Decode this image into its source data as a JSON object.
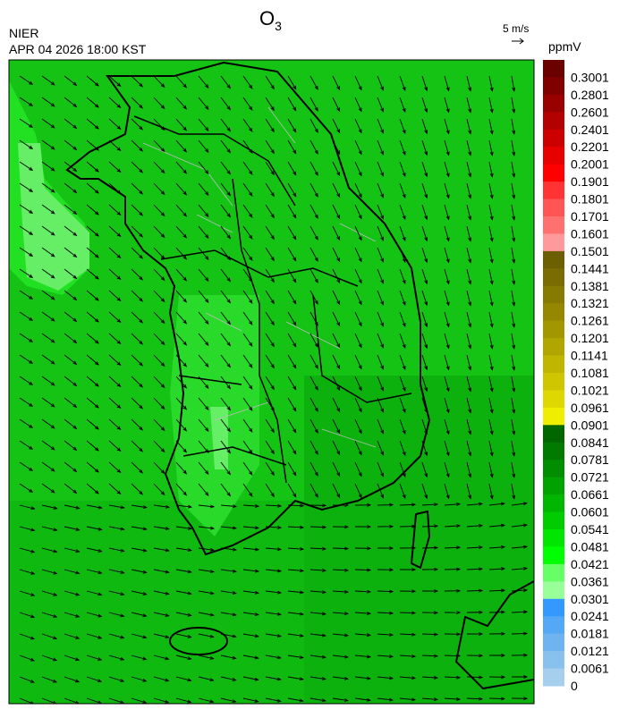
{
  "header": {
    "title_main": "O",
    "title_sub": "3",
    "source": "NIER",
    "datetime": "APR 04 2026 18:00 KST",
    "wind_scale": "5 m/s"
  },
  "legend": {
    "unit": "ppmV",
    "items": [
      {
        "label": "0.3001",
        "color": "#6a0000"
      },
      {
        "label": "0.2801",
        "color": "#800000"
      },
      {
        "label": "0.2601",
        "color": "#990000"
      },
      {
        "label": "0.2401",
        "color": "#b30000"
      },
      {
        "label": "0.2201",
        "color": "#cc0000"
      },
      {
        "label": "0.2001",
        "color": "#e60000"
      },
      {
        "label": "0.1901",
        "color": "#ff0000"
      },
      {
        "label": "0.1801",
        "color": "#ff3333"
      },
      {
        "label": "0.1701",
        "color": "#ff5555"
      },
      {
        "label": "0.1601",
        "color": "#ff7070"
      },
      {
        "label": "0.1501",
        "color": "#ff9a9a"
      },
      {
        "label": "0.1441",
        "color": "#6b5f00"
      },
      {
        "label": "0.1381",
        "color": "#7a6c00"
      },
      {
        "label": "0.1321",
        "color": "#877a00"
      },
      {
        "label": "0.1261",
        "color": "#958800"
      },
      {
        "label": "0.1201",
        "color": "#a39700"
      },
      {
        "label": "0.1141",
        "color": "#b1a600"
      },
      {
        "label": "0.1081",
        "color": "#c0b600"
      },
      {
        "label": "0.1021",
        "color": "#cfc600"
      },
      {
        "label": "0.0961",
        "color": "#dfd800"
      },
      {
        "label": "0.0901",
        "color": "#f0ee00"
      },
      {
        "label": "0.0841",
        "color": "#006600"
      },
      {
        "label": "0.0781",
        "color": "#007a00"
      },
      {
        "label": "0.0721",
        "color": "#008e00"
      },
      {
        "label": "0.0661",
        "color": "#00a200"
      },
      {
        "label": "0.0601",
        "color": "#00b600"
      },
      {
        "label": "0.0541",
        "color": "#00cc00"
      },
      {
        "label": "0.0481",
        "color": "#00e600"
      },
      {
        "label": "0.0421",
        "color": "#00ff00"
      },
      {
        "label": "0.0361",
        "color": "#66ff66"
      },
      {
        "label": "0.0301",
        "color": "#99ff99"
      },
      {
        "label": "0.0241",
        "color": "#3399ff"
      },
      {
        "label": "0.0181",
        "color": "#55a8f5"
      },
      {
        "label": "0.0121",
        "color": "#6fb4f0"
      },
      {
        "label": "0.0061",
        "color": "#88c0ee"
      },
      {
        "label": "0",
        "color": "#a6cfee"
      }
    ]
  }
}
